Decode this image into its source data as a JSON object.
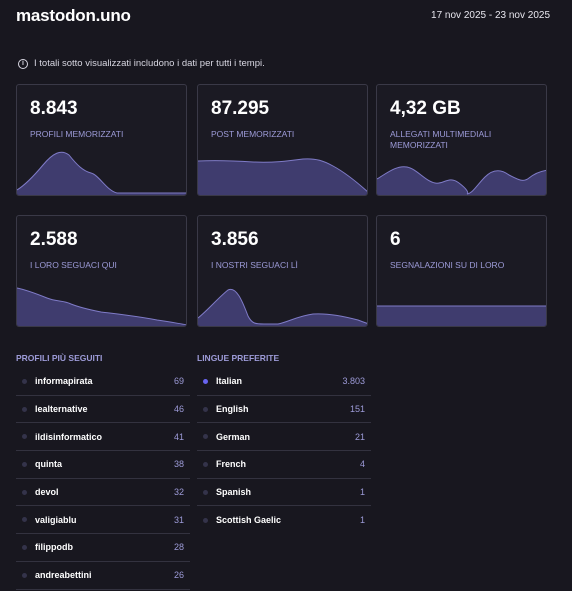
{
  "header": {
    "title": "mastodon.uno",
    "date_range": "17 nov 2025 - 23 nov 2025"
  },
  "info": {
    "icon": "info-circle-icon",
    "text": "I totali sotto visualizzati includono i dati per tutti i tempi."
  },
  "cards": [
    {
      "value": "8.843",
      "label": "PROFILI MEMORIZZATI"
    },
    {
      "value": "87.295",
      "label": "POST MEMORIZZATI"
    },
    {
      "value": "4,32 GB",
      "label": "ALLEGATI MULTIMEDIALI MEMORIZZATI"
    },
    {
      "value": "2.588",
      "label": "I LORO SEGUACI QUI"
    },
    {
      "value": "3.856",
      "label": "I NOSTRI SEGUACI LÌ"
    },
    {
      "value": "6",
      "label": "SEGNALAZIONI SU DI LORO"
    }
  ],
  "profiles": {
    "title": "PROFILI PIÙ SEGUITI",
    "items": [
      {
        "name": "informapirata",
        "count": "69"
      },
      {
        "name": "lealternative",
        "count": "46"
      },
      {
        "name": "ildisinformatico",
        "count": "41"
      },
      {
        "name": "quinta",
        "count": "38"
      },
      {
        "name": "devol",
        "count": "32"
      },
      {
        "name": "valigiablu",
        "count": "31"
      },
      {
        "name": "filippodb",
        "count": "28"
      },
      {
        "name": "andreabettini",
        "count": "26"
      }
    ]
  },
  "languages": {
    "title": "LINGUE PREFERITE",
    "items": [
      {
        "name": "Italian",
        "count": "3.803",
        "active": true
      },
      {
        "name": "English",
        "count": "151"
      },
      {
        "name": "German",
        "count": "21"
      },
      {
        "name": "French",
        "count": "4"
      },
      {
        "name": "Spanish",
        "count": "1"
      },
      {
        "name": "Scottish Gaelic",
        "count": "1"
      }
    ]
  },
  "colors": {
    "accent": "#6864f0",
    "label": "#9d9bd8",
    "spark_fill": "#3f3c6e",
    "spark_line": "#7f7bc7"
  }
}
